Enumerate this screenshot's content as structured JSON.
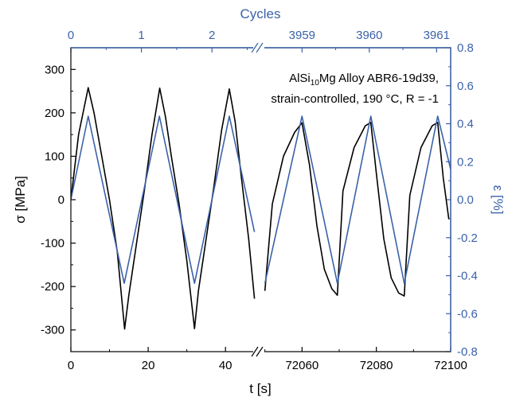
{
  "chart_data": {
    "type": "line",
    "colors": {
      "stress": "#000000",
      "strain": "#3b62a8",
      "axis_right": "#3b62a8",
      "axis_top": "#3b62a8"
    },
    "annotation": {
      "line1_a": "AlSi",
      "line1_sub": "10",
      "line1_b": "Mg Alloy ABR6-19d39,",
      "line2": "strain-controlled, 190 °C, R = -1"
    },
    "axes": {
      "x_bottom": {
        "label": "t [s]",
        "segment1": {
          "lim": [
            0,
            48
          ],
          "ticks": [
            0,
            20,
            40
          ],
          "tick_labels": [
            "0",
            "20",
            "40"
          ]
        },
        "segment2": {
          "lim": [
            72049,
            72100
          ],
          "ticks": [
            72060,
            72080,
            72100
          ],
          "tick_labels": [
            "72060",
            "72080",
            "72100"
          ]
        },
        "break": true
      },
      "x_top": {
        "label": "Cycles",
        "segment1_ticks": [
          0,
          1,
          2
        ],
        "segment1_labels": [
          "0",
          "1",
          "2"
        ],
        "segment2_ticks": [
          3959,
          3960,
          3961
        ],
        "segment2_labels": [
          "3959",
          "3960",
          "3961"
        ]
      },
      "y_left": {
        "label": "σ [MPa]",
        "lim": [
          -350,
          350
        ],
        "ticks": [
          -300,
          -200,
          -100,
          0,
          100,
          200,
          300
        ],
        "tick_labels": [
          "-300",
          "-200",
          "-100",
          "0",
          "100",
          "200",
          "300"
        ]
      },
      "y_right": {
        "label": "ε [%]",
        "lim": [
          -0.8,
          0.8
        ],
        "ticks": [
          -0.8,
          -0.6,
          -0.4,
          -0.2,
          0.0,
          0.2,
          0.4,
          0.6,
          0.8
        ],
        "tick_labels": [
          "-0.8",
          "-0.6",
          "-0.4",
          "-0.2",
          "0.0",
          "0.2",
          "0.4",
          "0.6",
          "0.8"
        ]
      }
    },
    "series": [
      {
        "axis": "left",
        "segment1": {
          "x": [
            0,
            2,
            4.5,
            6,
            8,
            10,
            12,
            13.9,
            15,
            17,
            19,
            21,
            23,
            24.5,
            26,
            28,
            30,
            32,
            33,
            35,
            37,
            39,
            41,
            42.5,
            44,
            46,
            47.5
          ],
          "y": [
            0,
            150,
            258,
            200,
            100,
            0,
            -120,
            -298,
            -220,
            -100,
            20,
            150,
            257,
            190,
            100,
            -10,
            -140,
            -297,
            -210,
            -90,
            30,
            160,
            255,
            180,
            60,
            -90,
            -228
          ]
        },
        "segment2": {
          "x": [
            72050,
            72052,
            72055,
            72058,
            72060,
            72062,
            72064,
            72066,
            72068,
            72069.5,
            72071,
            72074,
            72077,
            72078.5,
            72080,
            72082,
            72084,
            72086,
            72087.5,
            72089,
            72092,
            72095,
            72096.5,
            72098,
            72099.5
          ],
          "y": [
            -210,
            -10,
            100,
            155,
            177,
            80,
            -60,
            -160,
            -205,
            -220,
            20,
            120,
            170,
            178,
            60,
            -90,
            -180,
            -215,
            -222,
            10,
            120,
            170,
            178,
            50,
            -45
          ]
        }
      },
      {
        "axis": "right",
        "segment1": {
          "x": [
            0,
            4.5,
            13.8,
            22.9,
            32,
            41,
            47.5
          ],
          "y": [
            0.0,
            0.44,
            -0.44,
            0.44,
            -0.44,
            0.44,
            -0.17
          ]
        },
        "segment2": {
          "x": [
            72050,
            72060,
            72069.5,
            72078.5,
            72087.5,
            72096.5,
            72100
          ],
          "y": [
            -0.44,
            0.44,
            -0.44,
            0.44,
            -0.44,
            0.44,
            0.16
          ]
        }
      }
    ]
  }
}
